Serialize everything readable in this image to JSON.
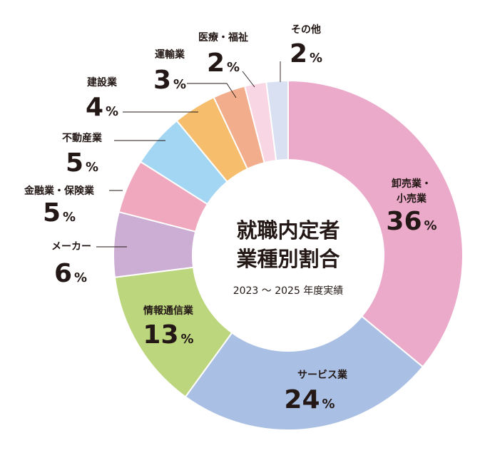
{
  "chart_data": {
    "type": "pie",
    "title": "就職内定者\n業種別割合",
    "subtitle": "2023 ～ 2025 年度実績",
    "unit": "%",
    "categories": [
      "卸売業・\n小売業",
      "サービス業",
      "情報通信業",
      "メーカー",
      "金融業・保険業",
      "不動産業",
      "建設業",
      "運輸業",
      "医療・福祉",
      "その他"
    ],
    "values": [
      36,
      24,
      13,
      6,
      5,
      5,
      4,
      3,
      2,
      2
    ],
    "colors": [
      "#ecaacb",
      "#a9bfe3",
      "#bcd67d",
      "#ccaed4",
      "#f0a8be",
      "#a2d6f2",
      "#f6bd6c",
      "#f2ad8c",
      "#f8d6e3",
      "#d8e0f1"
    ],
    "legend": "none"
  }
}
